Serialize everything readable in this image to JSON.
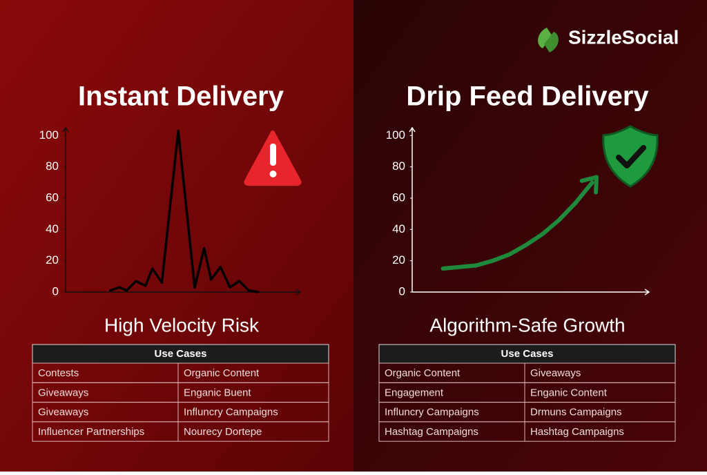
{
  "brand": "SizzleSocial",
  "chart_data": [
    {
      "type": "line",
      "title": "Instant Delivery",
      "subtitle": "High Velocity Risk",
      "color": "#000000",
      "x": [
        19,
        23,
        26,
        30,
        34,
        37,
        41,
        48,
        55,
        59,
        62,
        66,
        70,
        74,
        78,
        82
      ],
      "values": [
        1,
        3,
        1,
        7,
        4,
        15,
        6,
        103,
        3,
        28,
        8,
        16,
        3,
        7,
        1,
        0
      ],
      "xlim": [
        0,
        100
      ],
      "ylim": [
        0,
        105
      ],
      "yticks": [
        0,
        20,
        40,
        60,
        80,
        100
      ]
    },
    {
      "type": "line",
      "title": "Drip Feed Delivery",
      "subtitle": "Algorithm-Safe Growth",
      "color": "#1f8a3c",
      "x": [
        13,
        20,
        27,
        34,
        41,
        48,
        55,
        62,
        69,
        76
      ],
      "values": [
        15,
        16,
        17,
        20,
        24,
        30,
        37,
        46,
        57,
        70
      ],
      "xlim": [
        0,
        100
      ],
      "ylim": [
        0,
        105
      ],
      "yticks": [
        0,
        20,
        40,
        60,
        80,
        100
      ]
    }
  ],
  "tables": [
    {
      "header": "Use Cases",
      "rows": [
        [
          "Contests",
          "Organic Content"
        ],
        [
          "Giveaways",
          "Enganic Buent"
        ],
        [
          "Giveaways",
          "Influncry Campaigns"
        ],
        [
          "Influencer Partnerships",
          "Nourecy Dortepe"
        ]
      ]
    },
    {
      "header": "Use Cases",
      "rows": [
        [
          "Organic Content",
          "Giveaways"
        ],
        [
          "Engagement",
          "Enganic Content"
        ],
        [
          "Influncry Campaigns",
          "Drmuns Campaigns"
        ],
        [
          "Hashtag Campaigns",
          "Hashtag Campaigns"
        ]
      ]
    }
  ]
}
